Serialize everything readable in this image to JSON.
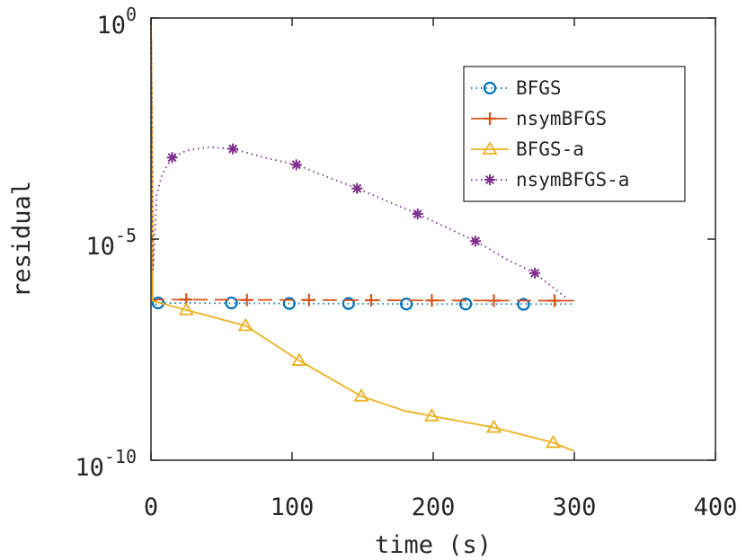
{
  "chart_data": {
    "type": "line",
    "title": "",
    "xlabel": "time (s)",
    "ylabel": "residual",
    "xlim": [
      0,
      400
    ],
    "ylim": [
      1e-10,
      1
    ],
    "yscale": "log",
    "grid": false,
    "legend_position": "top-right",
    "x_ticks": [
      {
        "value": 0,
        "label": "0"
      },
      {
        "value": 100,
        "label": "100"
      },
      {
        "value": 200,
        "label": "200"
      },
      {
        "value": 300,
        "label": "300"
      },
      {
        "value": 400,
        "label": "400"
      }
    ],
    "y_ticks": [
      {
        "value": 1,
        "base": "10",
        "exp": "0"
      },
      {
        "value": 1e-05,
        "base": "10",
        "exp": "-5"
      },
      {
        "value": 1e-10,
        "base": "10",
        "exp": "-10"
      }
    ],
    "series": [
      {
        "name": "BFGS",
        "color": "#0072BD",
        "line_style": "dotted",
        "marker": "circle",
        "line": [
          [
            0,
            1
          ],
          [
            0.5,
            0.02
          ],
          [
            1.2,
            3e-07
          ],
          [
            5,
            3.6e-07
          ],
          [
            100,
            3.5e-07
          ],
          [
            200,
            3.4e-07
          ],
          [
            300,
            3.4e-07
          ]
        ],
        "markers": [
          [
            5,
            3.6e-07
          ],
          [
            57,
            3.6e-07
          ],
          [
            98,
            3.5e-07
          ],
          [
            140,
            3.5e-07
          ],
          [
            181,
            3.4e-07
          ],
          [
            223,
            3.4e-07
          ],
          [
            264,
            3.35e-07
          ]
        ]
      },
      {
        "name": "nsymBFGS",
        "color": "#D95319",
        "line_style": "dashed",
        "marker": "plus",
        "line": [
          [
            0,
            1
          ],
          [
            0.5,
            0.02
          ],
          [
            1.2,
            4e-07
          ],
          [
            5,
            4.3e-07
          ],
          [
            100,
            4.2e-07
          ],
          [
            200,
            4.1e-07
          ],
          [
            300,
            4.05e-07
          ]
        ],
        "markers": [
          [
            25,
            4.3e-07
          ],
          [
            68,
            4.2e-07
          ],
          [
            112,
            4.2e-07
          ],
          [
            156,
            4.15e-07
          ],
          [
            199,
            4.1e-07
          ],
          [
            243,
            4.05e-07
          ],
          [
            286,
            4.05e-07
          ]
        ]
      },
      {
        "name": "BFGS-a",
        "color": "#EDB120",
        "line_style": "solid",
        "marker": "triangle",
        "line": [
          [
            0,
            1
          ],
          [
            0.5,
            0.02
          ],
          [
            1.2,
            4e-07
          ],
          [
            25,
            2.5e-07
          ],
          [
            67,
            1.1e-07
          ],
          [
            105,
            1.8e-08
          ],
          [
            149,
            2.8e-09
          ],
          [
            180,
            1.3e-09
          ],
          [
            199,
            1e-09
          ],
          [
            243,
            5.5e-10
          ],
          [
            285,
            2.5e-10
          ],
          [
            300,
            1.6e-10
          ]
        ],
        "markers": [
          [
            25,
            2.5e-07
          ],
          [
            67,
            1.1e-07
          ],
          [
            105,
            1.8e-08
          ],
          [
            149,
            2.8e-09
          ],
          [
            199,
            1e-09
          ],
          [
            243,
            5.5e-10
          ],
          [
            285,
            2.5e-10
          ]
        ]
      },
      {
        "name": "nsymBFGS-a",
        "color": "#7E2F8E",
        "line_style": "dotted",
        "marker": "star",
        "line": [
          [
            0,
            1
          ],
          [
            0.5,
            0.02
          ],
          [
            1.5,
            2e-06
          ],
          [
            4,
            0.0001
          ],
          [
            8,
            0.0003
          ],
          [
            15,
            0.0007
          ],
          [
            25,
            0.001
          ],
          [
            40,
            0.0012
          ],
          [
            58,
            0.0011
          ],
          [
            80,
            0.0007
          ],
          [
            103,
            0.00048
          ],
          [
            130,
            0.00022
          ],
          [
            146,
            0.00014
          ],
          [
            189,
            3.7e-05
          ],
          [
            230,
            9e-06
          ],
          [
            252,
            3.5e-06
          ],
          [
            272,
            1.7e-06
          ],
          [
            285,
            8e-07
          ],
          [
            295,
            4.5e-07
          ]
        ],
        "markers": [
          [
            15,
            0.0007
          ],
          [
            58,
            0.0011
          ],
          [
            103,
            0.00048
          ],
          [
            146,
            0.00014
          ],
          [
            189,
            3.7e-05
          ],
          [
            230,
            9e-06
          ],
          [
            272,
            1.7e-06
          ]
        ]
      }
    ]
  }
}
